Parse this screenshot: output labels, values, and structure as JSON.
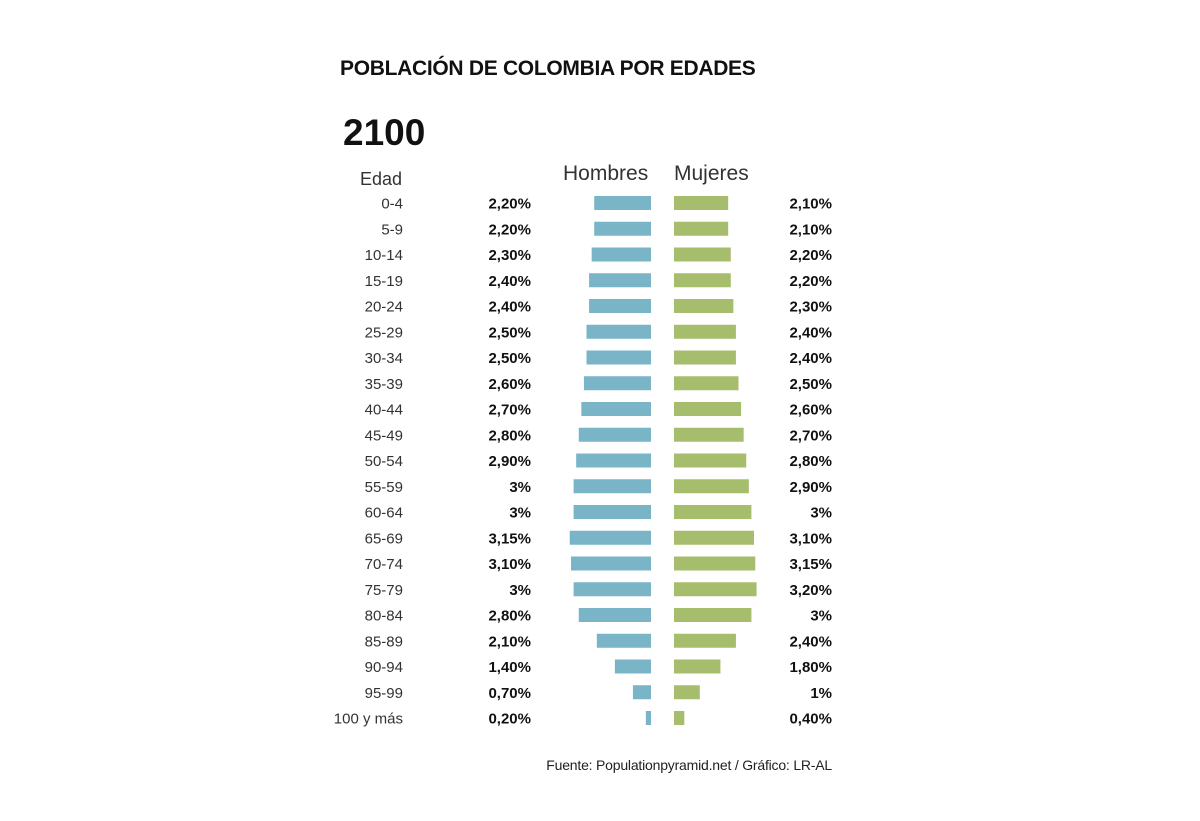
{
  "title": "POBLACIÓN DE COLOMBIA POR EDADES",
  "year": "2100",
  "headers": {
    "age": "Edad",
    "men": "Hombres",
    "women": "Mujeres"
  },
  "source": "Fuente: Populationpyramid.net / Gráfico: LR-AL",
  "colors": {
    "men": "#7ab4c7",
    "women": "#a5bd6c"
  },
  "chart_data": {
    "type": "bar",
    "orientation": "horizontal-pyramid",
    "categories": [
      "0-4",
      "5-9",
      "10-14",
      "15-19",
      "20-24",
      "25-29",
      "30-34",
      "35-39",
      "40-44",
      "45-49",
      "50-54",
      "55-59",
      "60-64",
      "65-69",
      "70-74",
      "75-79",
      "80-84",
      "85-89",
      "90-94",
      "95-99",
      "100 y más"
    ],
    "series": [
      {
        "name": "Hombres",
        "values": [
          2.2,
          2.2,
          2.3,
          2.4,
          2.4,
          2.5,
          2.5,
          2.6,
          2.7,
          2.8,
          2.9,
          3,
          3,
          3.15,
          3.1,
          3,
          2.8,
          2.1,
          1.4,
          0.7,
          0.2
        ],
        "labels": [
          "2,20%",
          "2,20%",
          "2,30%",
          "2,40%",
          "2,40%",
          "2,50%",
          "2,50%",
          "2,60%",
          "2,70%",
          "2,80%",
          "2,90%",
          "3%",
          "3%",
          "3,15%",
          "3,10%",
          "3%",
          "2,80%",
          "2,10%",
          "1,40%",
          "0,70%",
          "0,20%"
        ]
      },
      {
        "name": "Mujeres",
        "values": [
          2.1,
          2.1,
          2.2,
          2.2,
          2.3,
          2.4,
          2.4,
          2.5,
          2.6,
          2.7,
          2.8,
          2.9,
          3,
          3.1,
          3.15,
          3.2,
          3,
          2.4,
          1.8,
          1,
          0.4
        ],
        "labels": [
          "2,10%",
          "2,10%",
          "2,20%",
          "2,20%",
          "2,30%",
          "2,40%",
          "2,40%",
          "2,50%",
          "2,60%",
          "2,70%",
          "2,80%",
          "2,90%",
          "3%",
          "3,10%",
          "3,15%",
          "3,20%",
          "3%",
          "2,40%",
          "1,80%",
          "1%",
          "0,40%"
        ]
      }
    ]
  }
}
